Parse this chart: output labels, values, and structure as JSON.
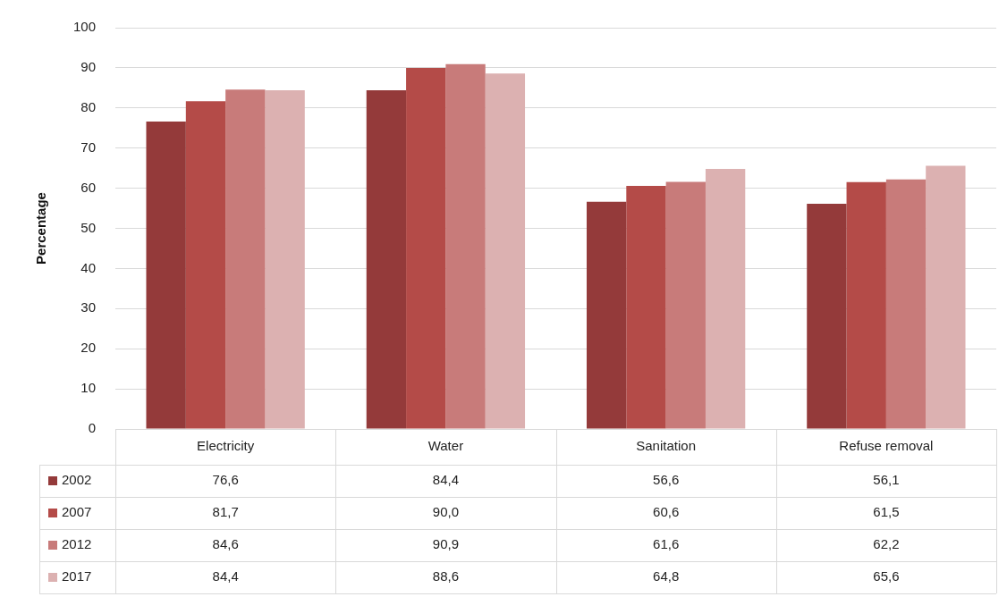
{
  "chart_data": {
    "type": "bar",
    "ylabel": "Percentage",
    "categories": [
      "Electricity",
      "Water",
      "Sanitation",
      "Refuse removal"
    ],
    "series": [
      {
        "name": "2002",
        "color": "#943a3a",
        "values": [
          76.6,
          84.4,
          56.6,
          56.1
        ],
        "value_labels": [
          "76,6",
          "84,4",
          "56,6",
          "56,1"
        ]
      },
      {
        "name": "2007",
        "color": "#b44b48",
        "values": [
          81.7,
          90.0,
          60.6,
          61.5
        ],
        "value_labels": [
          "81,7",
          "90,0",
          "60,6",
          "61,5"
        ]
      },
      {
        "name": "2012",
        "color": "#c87b7a",
        "values": [
          84.6,
          90.9,
          61.6,
          62.2
        ],
        "value_labels": [
          "84,6",
          "90,9",
          "61,6",
          "62,2"
        ]
      },
      {
        "name": "2017",
        "color": "#dcb1b1",
        "values": [
          84.4,
          88.6,
          64.8,
          65.6
        ],
        "value_labels": [
          "84,4",
          "88,6",
          "64,8",
          "65,6"
        ]
      }
    ],
    "ylim": [
      0,
      100
    ],
    "yticks": [
      0,
      10,
      20,
      30,
      40,
      50,
      60,
      70,
      80,
      90,
      100
    ],
    "grid": "y",
    "legend": "bottom"
  }
}
